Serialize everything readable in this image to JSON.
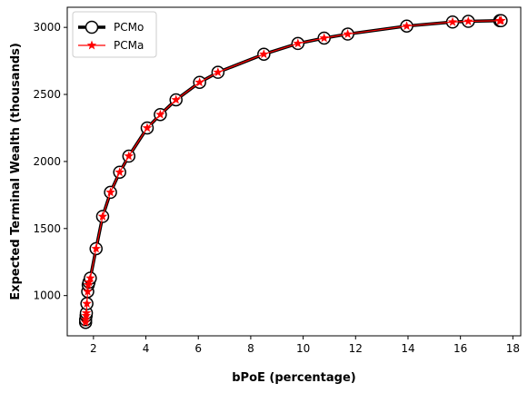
{
  "chart_data": {
    "type": "line",
    "xlabel": "bPoE (percentage)",
    "ylabel": "Expected Terminal Wealth (thousands)",
    "xlim": [
      1,
      18.3
    ],
    "ylim": [
      700,
      3150
    ],
    "xticks": [
      2,
      4,
      6,
      8,
      10,
      12,
      14,
      16,
      18
    ],
    "yticks": [
      1000,
      1500,
      2000,
      2500,
      3000
    ],
    "grid": false,
    "legend_position": "top-left",
    "x": [
      1.7,
      1.7,
      1.72,
      1.73,
      1.75,
      1.78,
      1.8,
      1.83,
      1.88,
      2.1,
      2.35,
      2.65,
      3.0,
      3.35,
      4.05,
      4.55,
      5.15,
      6.05,
      6.75,
      8.5,
      9.8,
      10.8,
      11.7,
      13.95,
      15.7,
      16.3,
      17.5,
      17.55
    ],
    "series": [
      {
        "name": "PCMo",
        "color": "#000000",
        "marker": "open-circle",
        "values": [
          800,
          820,
          850,
          870,
          940,
          1030,
          1080,
          1100,
          1130,
          1350,
          1590,
          1770,
          1920,
          2040,
          2250,
          2350,
          2460,
          2590,
          2665,
          2800,
          2880,
          2920,
          2950,
          3010,
          3040,
          3045,
          3050,
          3050
        ]
      },
      {
        "name": "PCMa",
        "color": "#ff0000",
        "marker": "star",
        "values": [
          800,
          820,
          850,
          870,
          940,
          1030,
          1080,
          1100,
          1130,
          1350,
          1590,
          1770,
          1920,
          2040,
          2250,
          2350,
          2460,
          2590,
          2665,
          2800,
          2880,
          2920,
          2950,
          3010,
          3040,
          3045,
          3050,
          3050
        ]
      }
    ]
  }
}
